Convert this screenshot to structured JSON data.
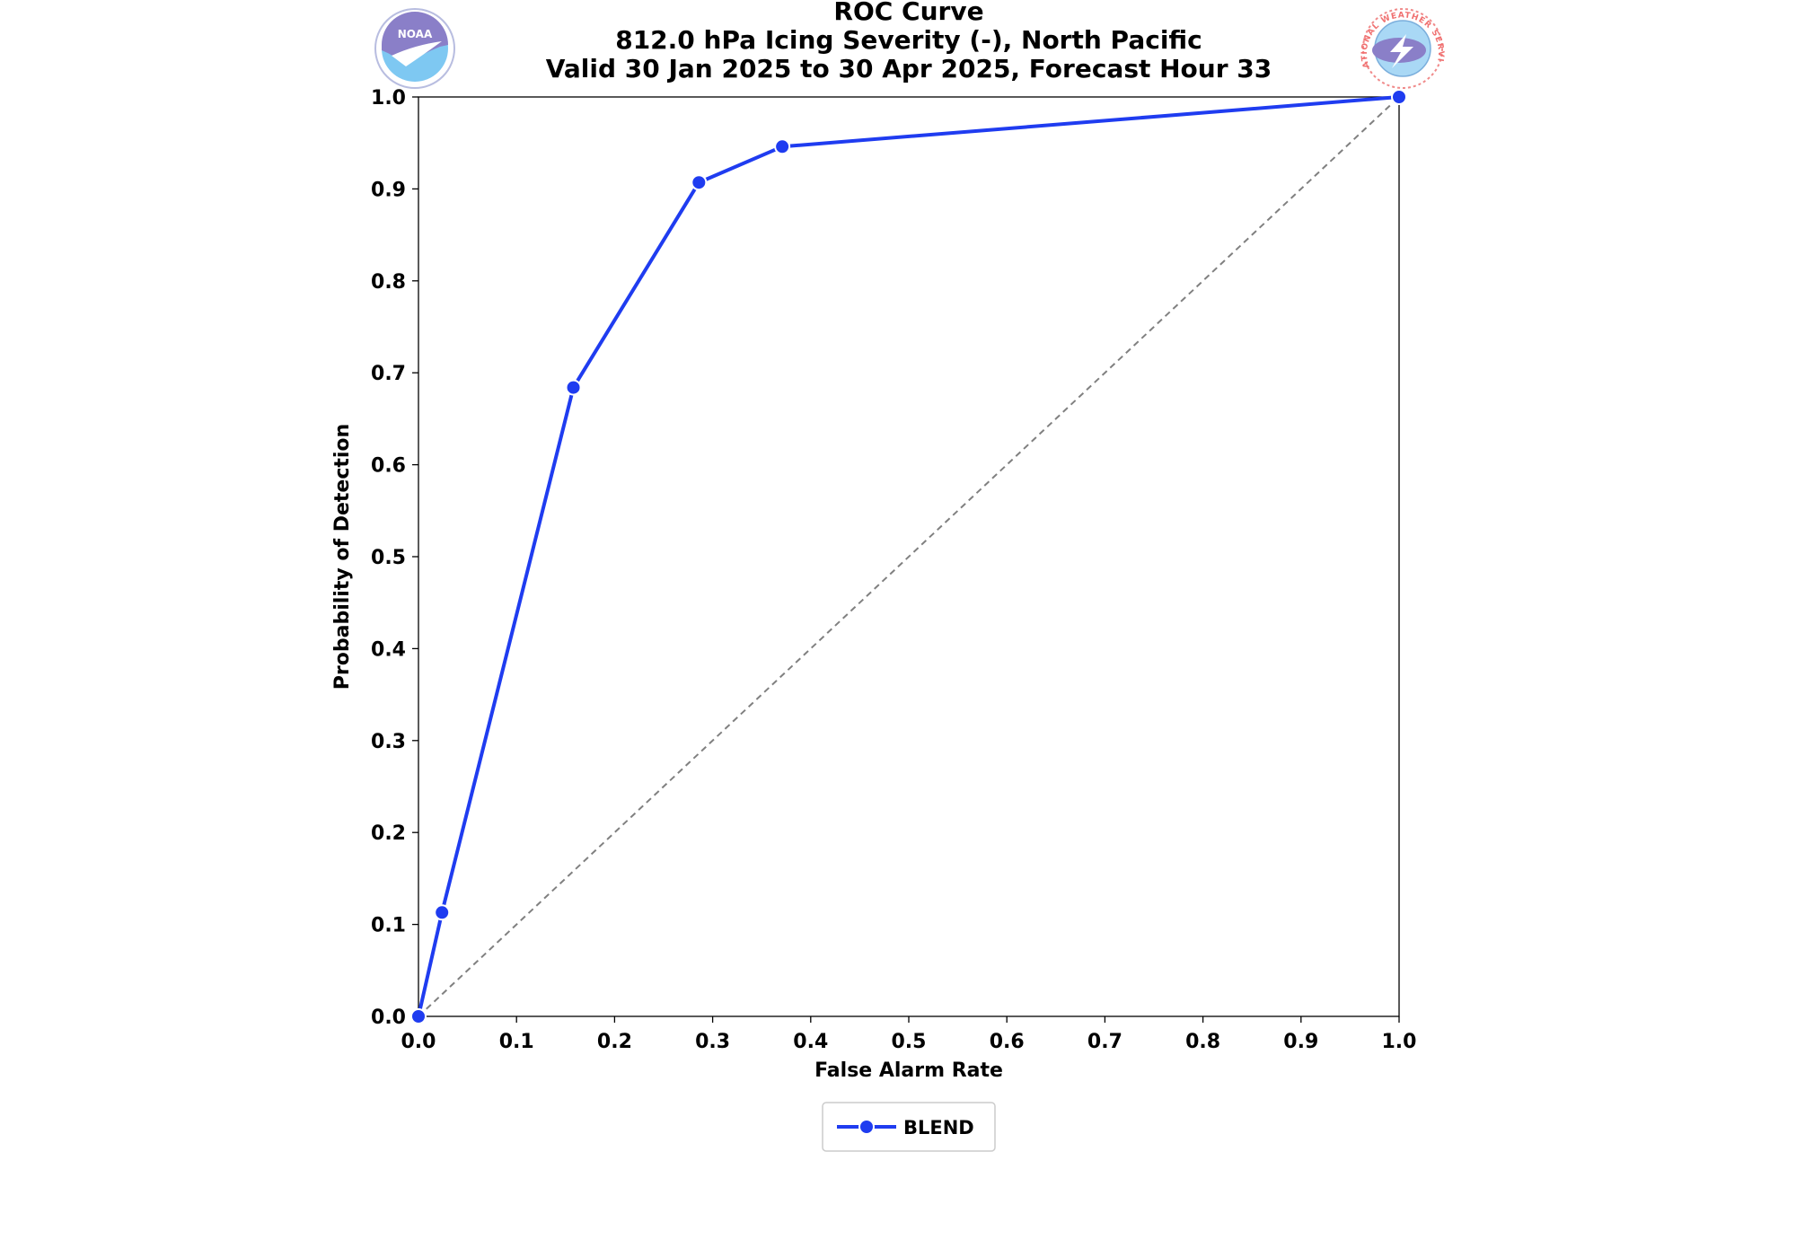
{
  "chart_data": {
    "type": "line",
    "title": [
      "ROC Curve",
      "812.0 hPa Icing Severity (-), North Pacific",
      "Valid 30 Jan 2025 to 30 Apr 2025, Forecast Hour 33"
    ],
    "xlabel": "False Alarm Rate",
    "ylabel": "Probability of Detection",
    "xlim": [
      0,
      1
    ],
    "ylim": [
      0,
      1
    ],
    "xticks": [
      "0.0",
      "0.1",
      "0.2",
      "0.3",
      "0.4",
      "0.5",
      "0.6",
      "0.7",
      "0.8",
      "0.9",
      "1.0"
    ],
    "yticks": [
      "0.0",
      "0.1",
      "0.2",
      "0.3",
      "0.4",
      "0.5",
      "0.6",
      "0.7",
      "0.8",
      "0.9",
      "1.0"
    ],
    "grid": false,
    "legend_position": "below",
    "reference_line": {
      "style": "dashed",
      "color": "#808080",
      "from": [
        0,
        0
      ],
      "to": [
        1,
        1
      ]
    },
    "series": [
      {
        "name": "BLEND",
        "color": "#1f3cf0",
        "marker": "circle",
        "x": [
          0.0,
          0.024,
          0.158,
          0.286,
          0.371,
          1.0
        ],
        "y": [
          0.0,
          0.113,
          0.684,
          0.907,
          0.946,
          1.0
        ]
      }
    ]
  },
  "logos": {
    "left": {
      "icon": "noaa-logo-icon",
      "text": "NOAA"
    },
    "right": {
      "icon": "nws-logo-icon",
      "text": "NATIONAL WEATHER SERVICE"
    }
  }
}
